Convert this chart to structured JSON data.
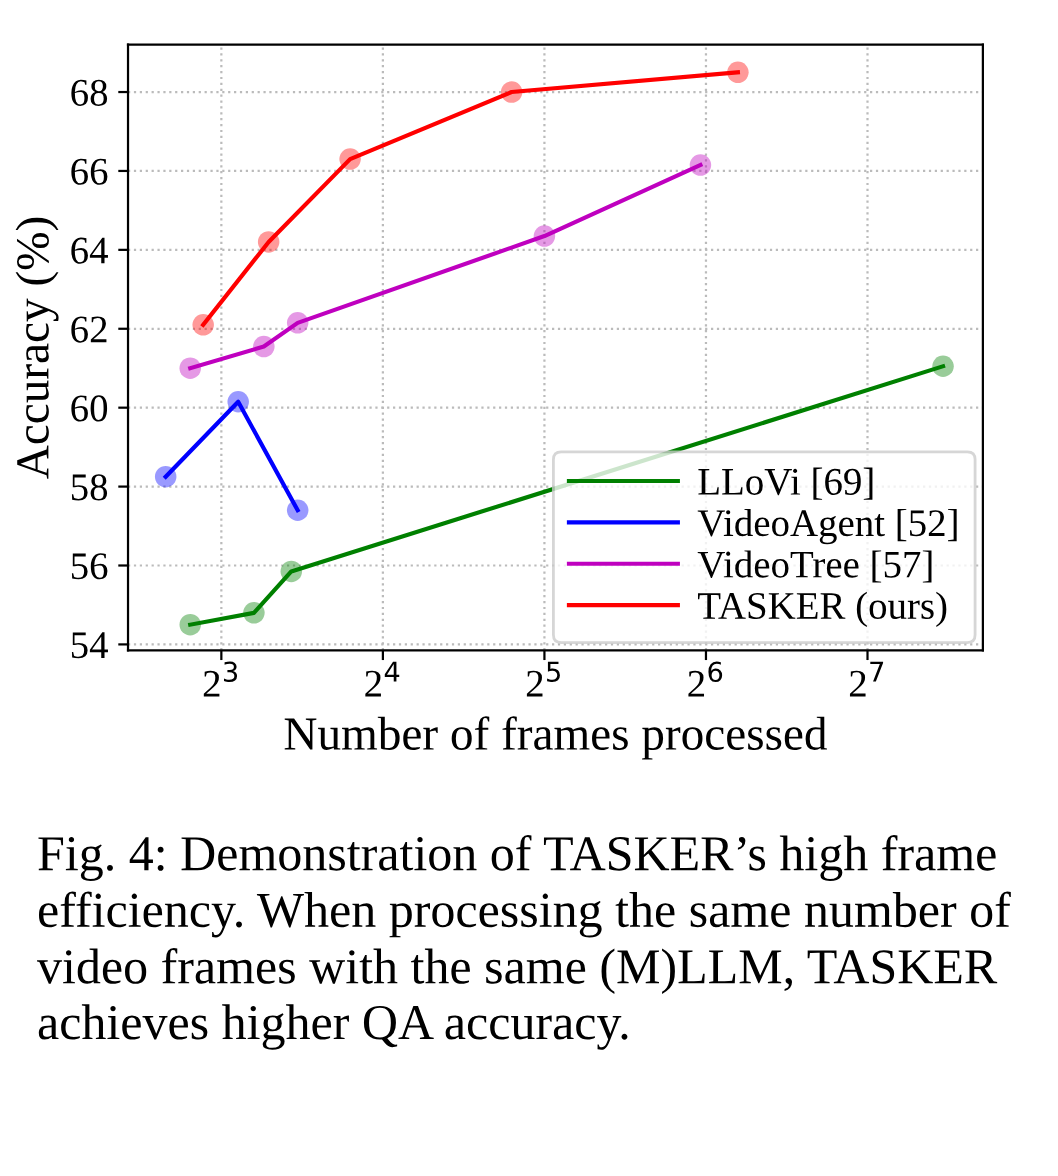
{
  "chart_data": {
    "type": "line",
    "xlabel": "Number of frames processed",
    "ylabel": "Accuracy (%)",
    "log": "x",
    "xlim": [
      5.36,
      210
    ],
    "xticks": [
      {
        "value": 8,
        "label": "2$^{3}$"
      },
      {
        "value": 16,
        "label": "2$^{4}$"
      },
      {
        "value": 32,
        "label": "2$^{5}$"
      },
      {
        "value": 64,
        "label": "2$^{6}$"
      },
      {
        "value": 128,
        "label": "2$^{7}$"
      }
    ],
    "ylim": [
      53.85,
      69.2
    ],
    "yticks": [
      54,
      56,
      58,
      60,
      62,
      64,
      66,
      68
    ],
    "grid": true,
    "legend": "bottom right",
    "marker": "circle",
    "line_style": "solid",
    "series": [
      {
        "name": "LLoVi [69]",
        "color": "#008000",
        "x": [
          7.0,
          9.2,
          10.8,
          177
        ],
        "values": [
          54.5,
          54.8,
          55.85,
          61.05
        ]
      },
      {
        "name": "VideoAgent [52]",
        "color": "#0000ff",
        "x": [
          6.3,
          8.6,
          11.1
        ],
        "values": [
          58.25,
          60.15,
          57.4
        ]
      },
      {
        "name": "VideoTree [57]",
        "color": "#bf00bf",
        "x": [
          7.0,
          9.6,
          11.1,
          32,
          62.5
        ],
        "values": [
          61.0,
          61.55,
          62.15,
          64.35,
          66.15
        ]
      },
      {
        "name": "TASKER (ours)",
        "color": "#ff0000",
        "x": [
          7.4,
          9.8,
          13.9,
          27.8,
          73.4
        ],
        "values": [
          62.1,
          64.2,
          66.3,
          68.0,
          68.5
        ]
      }
    ],
    "annotations": [
      "Fig. 4: Demonstration of TASKER’s high frame efficiency. When processing the same number of video frames with the same (M)LLM, TASKER achieves higher QA accuracy."
    ]
  }
}
